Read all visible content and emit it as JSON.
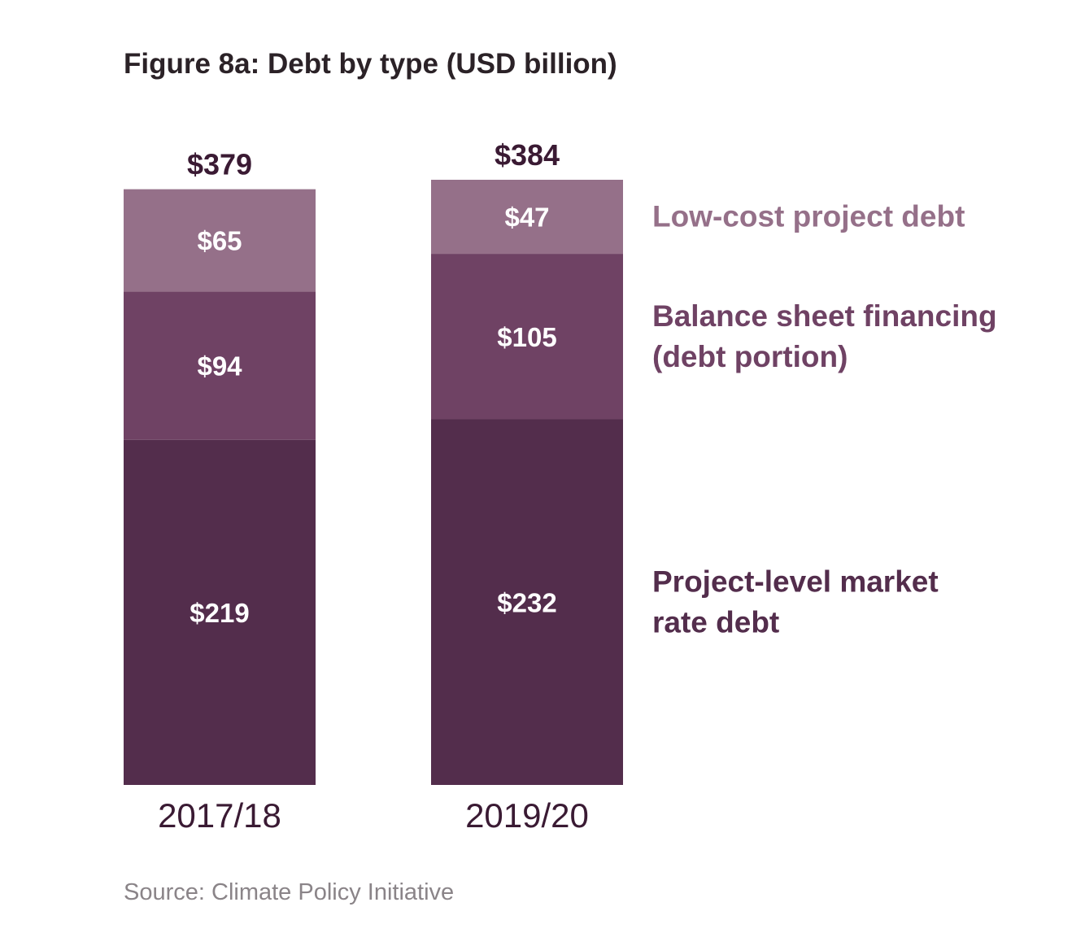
{
  "chart_data": {
    "type": "bar",
    "stacked": true,
    "title": "Figure 8a: Debt by type (USD billion)",
    "categories": [
      "2017/18",
      "2019/20"
    ],
    "totals": [
      379,
      384
    ],
    "total_labels": [
      "$379",
      "$384"
    ],
    "series": [
      {
        "name": "Project-level market rate debt",
        "legend_lines": [
          "Project-level market",
          "rate debt"
        ],
        "values": [
          219,
          232
        ],
        "labels": [
          "$219",
          "$232"
        ],
        "color": "#532d4c"
      },
      {
        "name": "Balance sheet financing (debt portion)",
        "legend_lines": [
          "Balance sheet financing",
          "(debt portion)"
        ],
        "values": [
          94,
          105
        ],
        "labels": [
          "$94",
          "$105"
        ],
        "color": "#6f4264"
      },
      {
        "name": "Low-cost project debt",
        "legend_lines": [
          "Low-cost project debt"
        ],
        "values": [
          65,
          47
        ],
        "labels": [
          "$65",
          "$47"
        ],
        "color": "#957089"
      }
    ],
    "legend_colors": [
      "#532d4c",
      "#6f4264",
      "#957089"
    ],
    "ylim": [
      0,
      384
    ],
    "grid": false,
    "legend_position": "right"
  },
  "source": "Source: Climate Policy Initiative"
}
